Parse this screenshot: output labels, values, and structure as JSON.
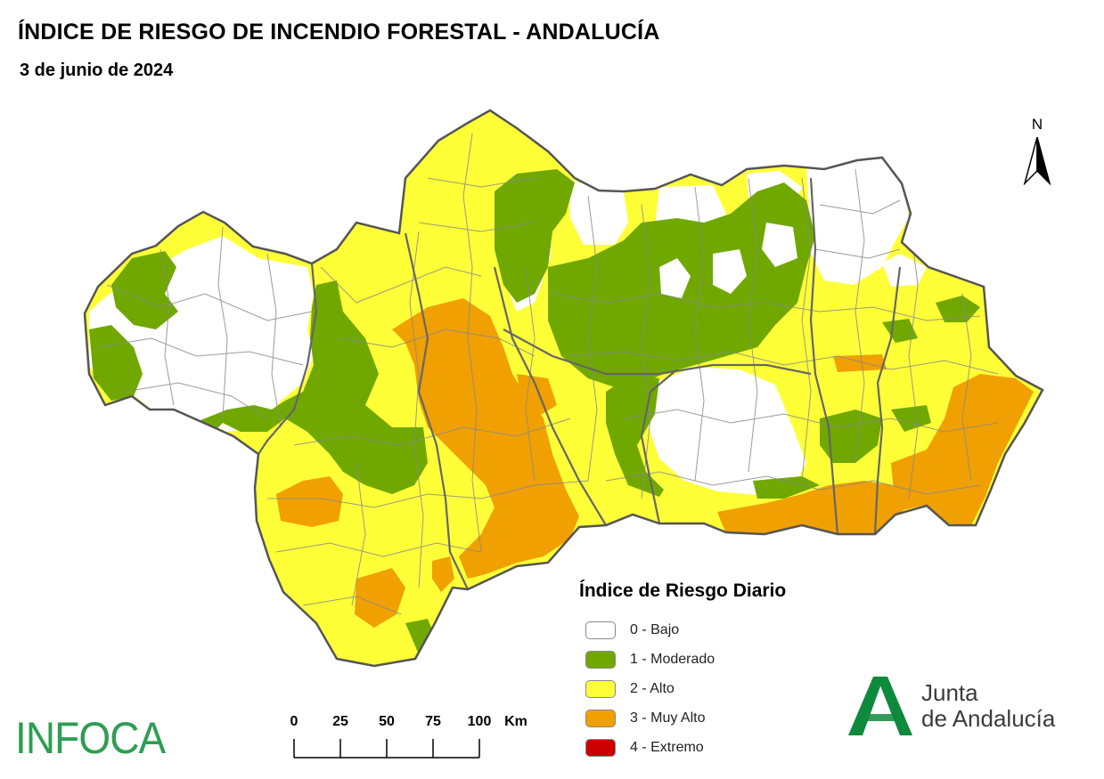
{
  "title": "ÍNDICE DE RIESGO DE INCENDIO FORESTAL - ANDALUCÍA",
  "subtitle": "3 de junio de 2024",
  "north_label": "N",
  "legend": {
    "title": "Índice de Riesgo Diario",
    "items": [
      {
        "label": "0 - Bajo",
        "color": "#ffffff"
      },
      {
        "label": "1 - Moderado",
        "color": "#70a800"
      },
      {
        "label": "2 - Alto",
        "color": "#ffff38"
      },
      {
        "label": "3 - Muy Alto",
        "color": "#f0a000"
      },
      {
        "label": "4 - Extremo",
        "color": "#cc0000"
      }
    ]
  },
  "scale_bar": {
    "ticks": [
      "0",
      "25",
      "50",
      "75",
      "100"
    ],
    "unit": "Km"
  },
  "logos": {
    "infoca": "INFOCA",
    "junta_line1": "Junta",
    "junta_line2": "de Andalucía"
  },
  "colors": {
    "bajo": "#ffffff",
    "moderado": "#70a800",
    "alto": "#ffff38",
    "muy_alto": "#f0a000",
    "extremo": "#cc0000",
    "border": "#666666",
    "infoca_green": "#2e9e52",
    "junta_green": "#0d8a3c"
  }
}
